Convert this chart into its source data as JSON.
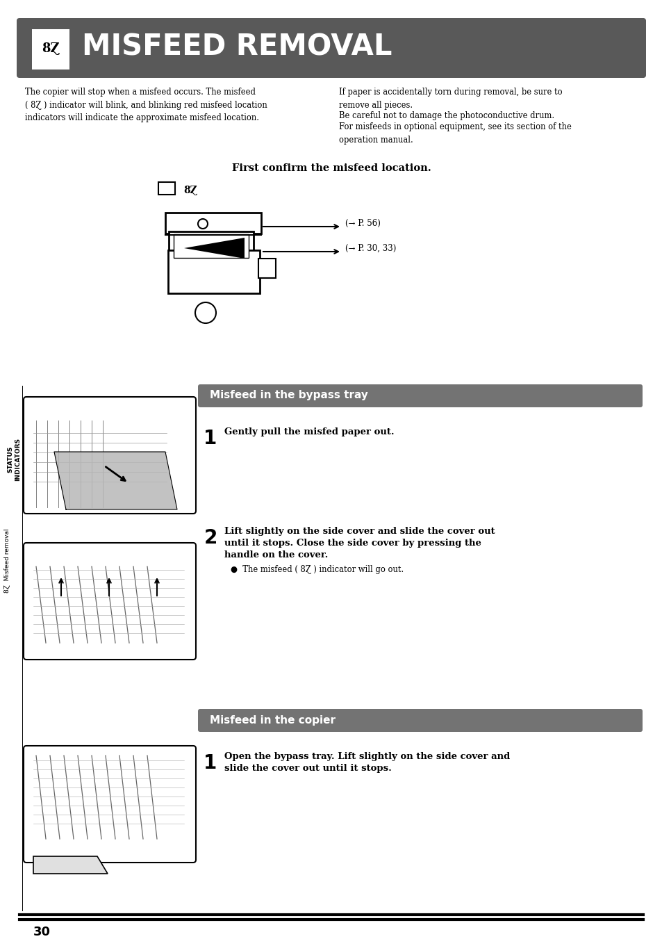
{
  "page_bg": "#ffffff",
  "header_bg": "#595959",
  "header_text": "MISFEED REMOVAL",
  "header_text_color": "#ffffff",
  "left_col_text": "The copier will stop when a misfeed occurs. The misfeed\n( 8Ɀ ) indicator will blink, and blinking red misfeed location\nindicators will indicate the approximate misfeed location.",
  "right_col_text_1": "If paper is accidentally torn during removal, be sure to\nremove all pieces.",
  "right_col_text_2": "Be careful not to damage the photoconductive drum.",
  "right_col_text_3": "For misfeeds in optional equipment, see its section of the\noperation manual.",
  "confirm_text": "First confirm the misfeed location.",
  "arrow_label_1": "(→ P. 56)",
  "arrow_label_2": "(→ P. 30, 33)",
  "section1_title": "Misfeed in the bypass tray",
  "section_bg": "#737373",
  "section_fg": "#ffffff",
  "step1a_text": "Gently pull the misfed paper out.",
  "step2a_text": "Lift slightly on the side cover and slide the cover out\nuntil it stops. Close the side cover by pressing the\nhandle on the cover.",
  "step2a_bullet": "The misfeed ( 8Ɀ ) indicator will go out.",
  "section2_title": "Misfeed in the copier",
  "step1b_text": "Open the bypass tray. Lift slightly on the side cover and\nslide the cover out until it stops.",
  "sidebar_top": "STATUS\nINDICATORS",
  "sidebar_bot": "8Ɀ  Misfeed removal",
  "page_number": "30"
}
